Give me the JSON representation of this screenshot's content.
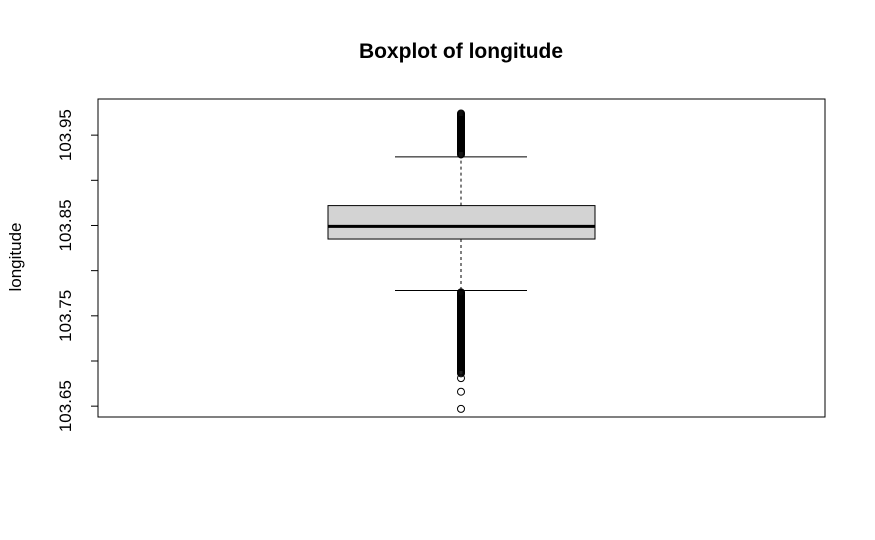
{
  "chart_data": {
    "type": "boxplot",
    "title": "Boxplot of longitude",
    "xlabel": "",
    "ylabel": "longitude",
    "ylim": [
      103.638,
      103.99
    ],
    "y_ticks": [
      103.65,
      103.7,
      103.75,
      103.8,
      103.85,
      103.9,
      103.95
    ],
    "y_tick_labels": [
      "103.65",
      "",
      "103.75",
      "",
      "103.85",
      "",
      "103.95"
    ],
    "grid": false,
    "box": {
      "whisker_low": 103.778,
      "q1": 103.835,
      "median": 103.849,
      "q3": 103.872,
      "whisker_high": 103.926,
      "box_fill": "#d3d3d3"
    },
    "outliers": {
      "upper_dense_range": [
        103.928,
        103.974
      ],
      "lower_dense_range": [
        103.686,
        103.776
      ],
      "sparse_low": [
        103.681,
        103.666,
        103.647
      ]
    }
  }
}
